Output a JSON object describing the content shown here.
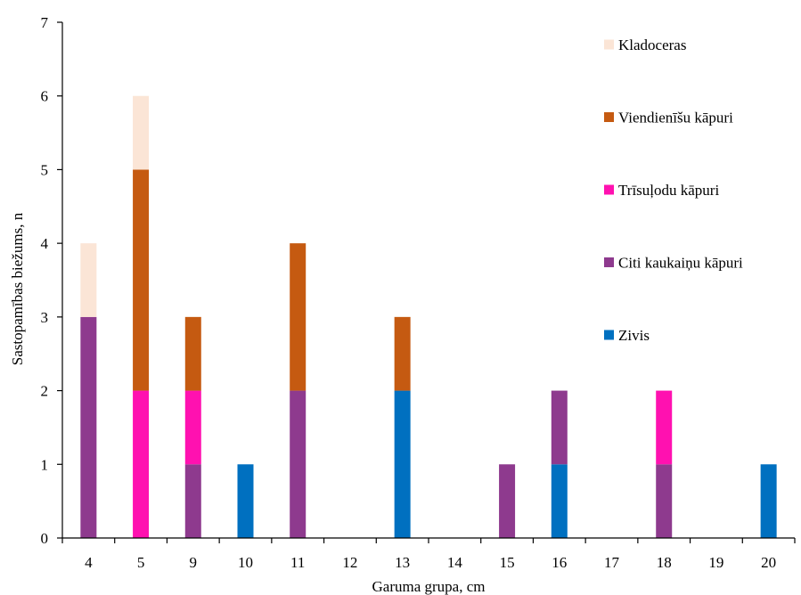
{
  "chart_data": {
    "type": "bar",
    "stacked": true,
    "categories": [
      "4",
      "5",
      "9",
      "10",
      "11",
      "12",
      "13",
      "14",
      "15",
      "16",
      "17",
      "18",
      "19",
      "20"
    ],
    "series": [
      {
        "name": "Zivis",
        "color": "#0070C0",
        "values": [
          0,
          0,
          0,
          1,
          0,
          0,
          2,
          0,
          0,
          1,
          0,
          0,
          0,
          1
        ]
      },
      {
        "name": "Citi kaukaiņu kāpuri",
        "color": "#8E3A8E",
        "values": [
          3,
          0,
          1,
          0,
          2,
          0,
          0,
          0,
          1,
          1,
          0,
          1,
          0,
          0
        ]
      },
      {
        "name": "Trīsuļodu kāpuri",
        "color": "#FF11B0",
        "values": [
          0,
          2,
          1,
          0,
          0,
          0,
          0,
          0,
          0,
          0,
          0,
          1,
          0,
          0
        ]
      },
      {
        "name": "Viendienīšu kāpuri",
        "color": "#C55A11",
        "values": [
          0,
          3,
          1,
          0,
          2,
          0,
          1,
          0,
          0,
          0,
          0,
          0,
          0,
          0
        ]
      },
      {
        "name": "Kladoceras",
        "color": "#FBE5D6",
        "values": [
          1,
          1,
          0,
          0,
          0,
          0,
          0,
          0,
          0,
          0,
          0,
          0,
          0,
          0
        ]
      }
    ],
    "legend_order": [
      "Kladoceras",
      "Viendienīšu kāpuri",
      "Trīsuļodu kāpuri",
      "Citi kaukaiņu kāpuri",
      "Zivis"
    ],
    "xlabel": "Garuma grupa, cm",
    "ylabel": "Sastopamības biežums, n",
    "ylim": [
      0,
      7
    ],
    "yticks": [
      "0",
      "1",
      "2",
      "3",
      "4",
      "5",
      "6",
      "7"
    ],
    "grid": false,
    "legend_position": "right"
  }
}
